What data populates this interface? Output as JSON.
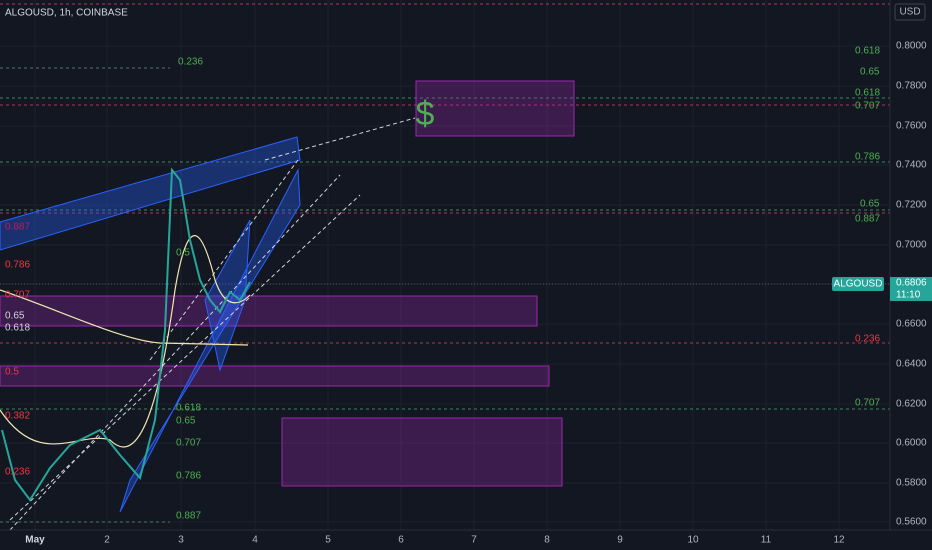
{
  "header": {
    "symbol": "ALGOUSD, 1h, COINBASE",
    "currency": "USD"
  },
  "price_axis": [
    "0.8000",
    "0.7800",
    "0.7600",
    "0.7400",
    "0.7200",
    "0.7000",
    "0.6600",
    "0.6400",
    "0.6200",
    "0.6000",
    "0.5800",
    "0.5600"
  ],
  "time_axis": [
    "May",
    "2",
    "3",
    "4",
    "5",
    "6",
    "7",
    "8",
    "9",
    "10",
    "11",
    "12"
  ],
  "price_tag": {
    "symbol": "ALGOUSD",
    "price": "0.6806",
    "countdown": "11:10"
  },
  "drawing": {
    "marker": "$"
  },
  "fib_left": [
    "0.887",
    "0.786",
    "0.707",
    "0.65",
    "0.618",
    "0.5",
    "0.382",
    "0.236"
  ],
  "fib_middle": [
    "0.236",
    "0.5",
    "0.618",
    "0.65",
    "0.707",
    "0.786",
    "0.887"
  ],
  "fib_right": [
    "0.618",
    "0.65",
    "0.618",
    "0.707",
    "0.786",
    "0.65",
    "0.887",
    "0.236",
    "0.707"
  ]
}
